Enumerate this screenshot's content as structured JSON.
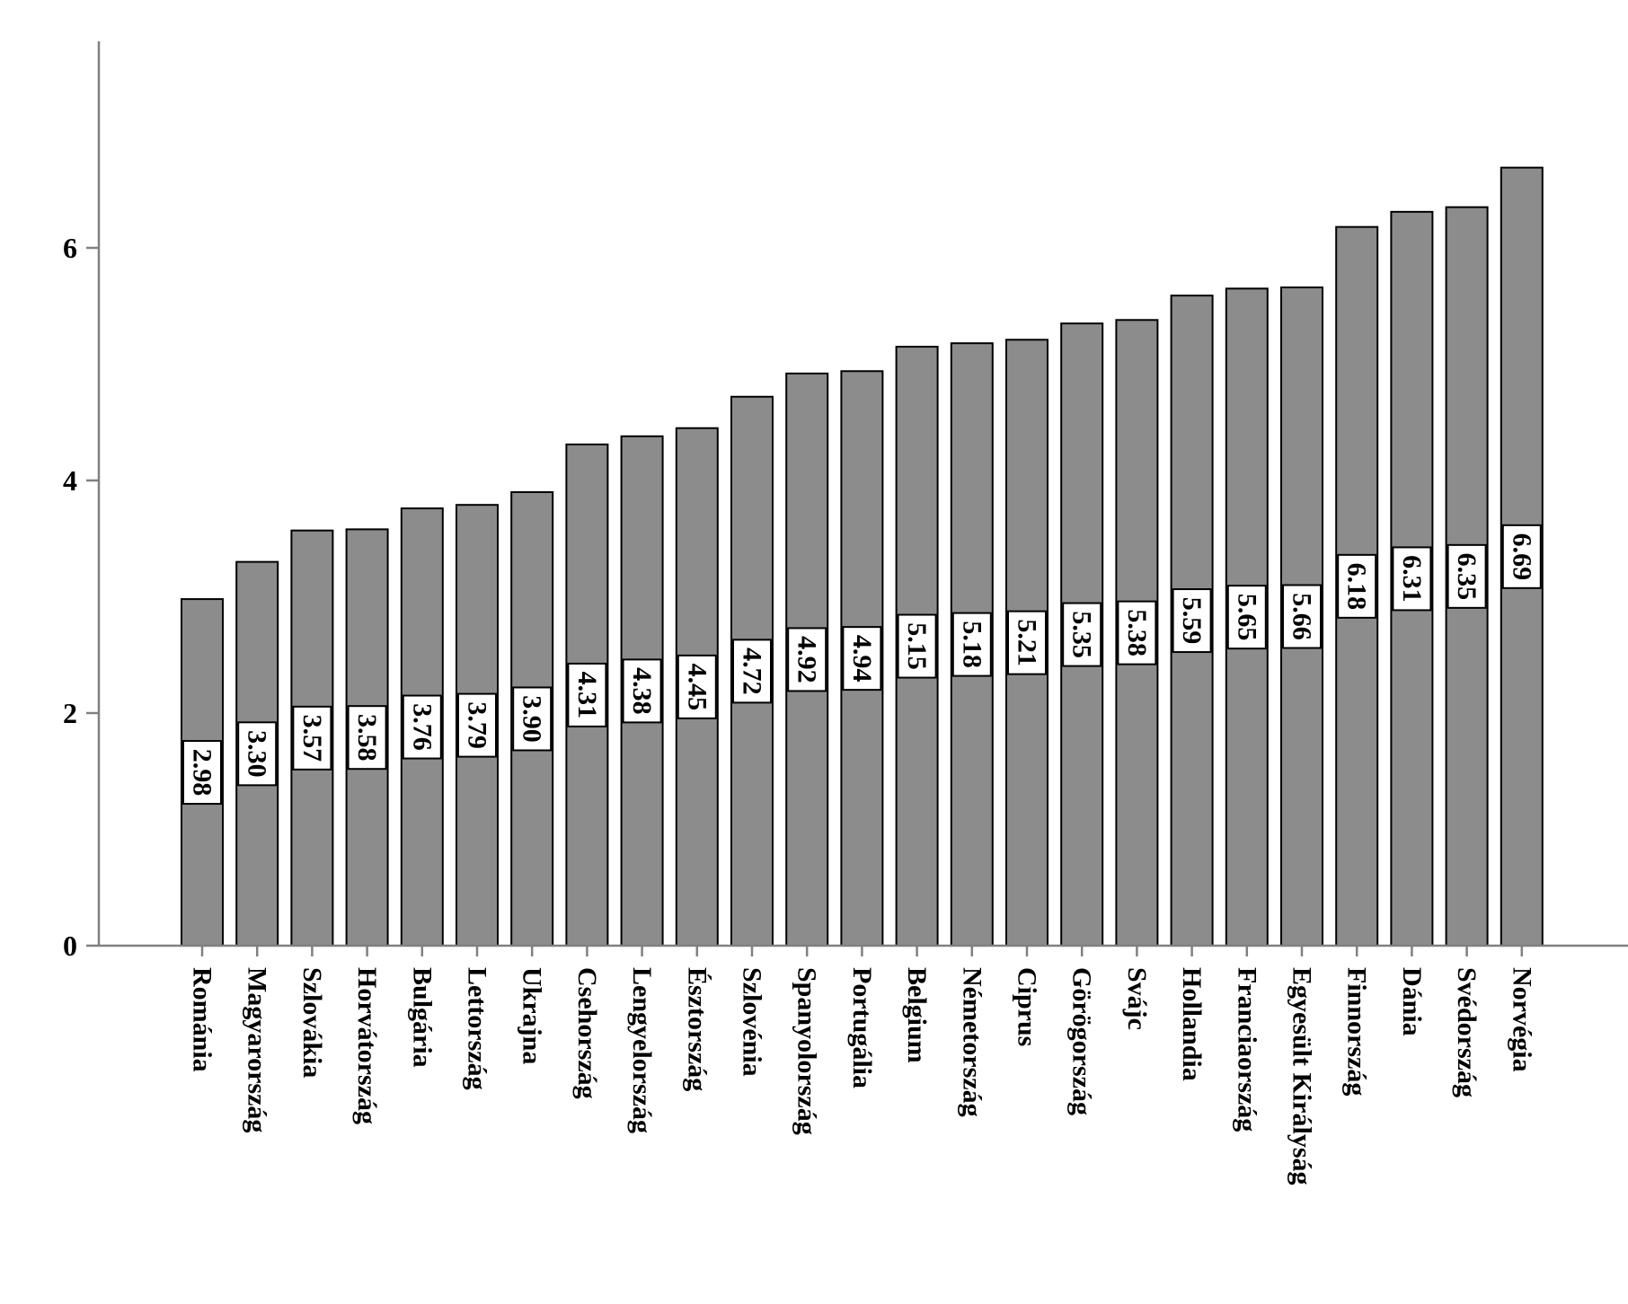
{
  "colors": {
    "bar": "#8c8c8c",
    "axis": "#808080",
    "label_box": "#ffffff"
  },
  "chart_data": {
    "type": "bar",
    "title": "",
    "xlabel": "",
    "ylabel": "",
    "ylim": [
      0,
      7.7
    ],
    "yticks": [
      0,
      2,
      4,
      6
    ],
    "grid": false,
    "categories": [
      "Románia",
      "Magyarország",
      "Szlovákia",
      "Horvátország",
      "Bulgária",
      "Lettország",
      "Ukrajna",
      "Csehország",
      "Lengyelország",
      "Észtország",
      "Szlovénia",
      "Spanyolország",
      "Portugália",
      "Belgium",
      "Németország",
      "Ciprus",
      "Görögország",
      "Svájc",
      "Hollandia",
      "Franciaország",
      "Egyesült Királyság",
      "Finnország",
      "Dánia",
      "Svédország",
      "Norvégia"
    ],
    "values": [
      2.98,
      3.3,
      3.57,
      3.58,
      3.76,
      3.79,
      3.9,
      4.31,
      4.38,
      4.45,
      4.72,
      4.92,
      4.94,
      5.15,
      5.18,
      5.21,
      5.35,
      5.38,
      5.59,
      5.65,
      5.66,
      6.18,
      6.31,
      6.35,
      6.69
    ],
    "value_labels": [
      "2.98",
      "3.30",
      "3.57",
      "3.58",
      "3.76",
      "3.79",
      "3.90",
      "4.31",
      "4.38",
      "4.45",
      "4.72",
      "4.92",
      "4.94",
      "5.15",
      "5.18",
      "5.21",
      "5.35",
      "5.38",
      "5.59",
      "5.65",
      "5.66",
      "6.18",
      "6.31",
      "6.35",
      "6.69"
    ]
  }
}
